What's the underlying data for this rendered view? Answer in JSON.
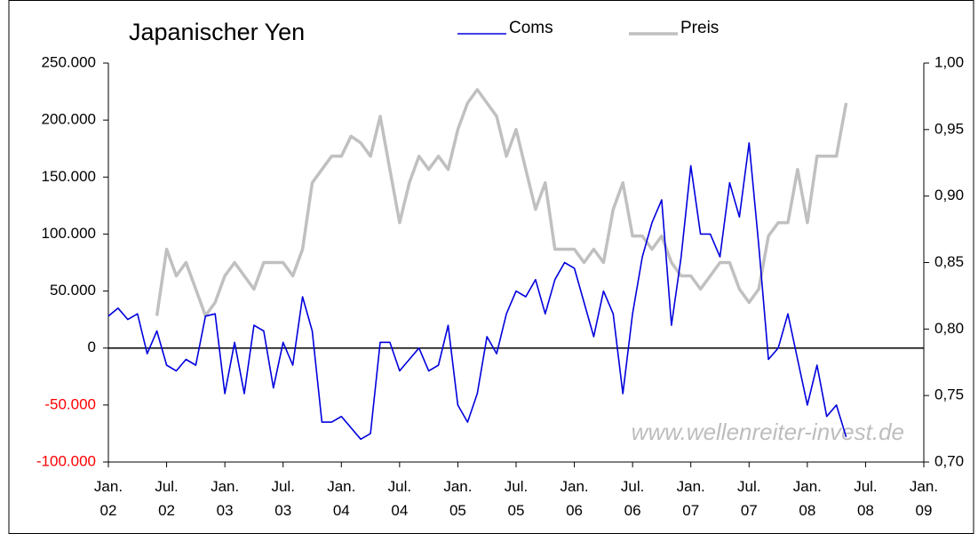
{
  "chart_data": {
    "type": "line",
    "title": "Japanischer Yen",
    "annotation": "www.wellenreiter-invest.de",
    "x": [
      "2002-01",
      "2002-02",
      "2002-03",
      "2002-04",
      "2002-05",
      "2002-06",
      "2002-07",
      "2002-08",
      "2002-09",
      "2002-10",
      "2002-11",
      "2002-12",
      "2003-01",
      "2003-02",
      "2003-03",
      "2003-04",
      "2003-05",
      "2003-06",
      "2003-07",
      "2003-08",
      "2003-09",
      "2003-10",
      "2003-11",
      "2003-12",
      "2004-01",
      "2004-02",
      "2004-03",
      "2004-04",
      "2004-05",
      "2004-06",
      "2004-07",
      "2004-08",
      "2004-09",
      "2004-10",
      "2004-11",
      "2004-12",
      "2005-01",
      "2005-02",
      "2005-03",
      "2005-04",
      "2005-05",
      "2005-06",
      "2005-07",
      "2005-08",
      "2005-09",
      "2005-10",
      "2005-11",
      "2005-12",
      "2006-01",
      "2006-02",
      "2006-03",
      "2006-04",
      "2006-05",
      "2006-06",
      "2006-07",
      "2006-08",
      "2006-09",
      "2006-10",
      "2006-11",
      "2006-12",
      "2007-01",
      "2007-02",
      "2007-03",
      "2007-04",
      "2007-05",
      "2007-06",
      "2007-07",
      "2007-08",
      "2007-09",
      "2007-10",
      "2007-11",
      "2007-12",
      "2008-01",
      "2008-02",
      "2008-03",
      "2008-04",
      "2008-05"
    ],
    "series": [
      {
        "name": "Coms",
        "color": "#0000dd",
        "axis": "y",
        "values": [
          28000,
          35000,
          25000,
          30000,
          -5000,
          15000,
          -15000,
          -20000,
          -10000,
          -15000,
          28000,
          30000,
          -40000,
          5000,
          -40000,
          20000,
          15000,
          -35000,
          5000,
          -15000,
          45000,
          15000,
          -65000,
          -65000,
          -60000,
          -70000,
          -80000,
          -75000,
          5000,
          5000,
          -20000,
          -10000,
          0,
          -20000,
          -15000,
          20000,
          -50000,
          -65000,
          -40000,
          10000,
          -5000,
          30000,
          50000,
          45000,
          60000,
          30000,
          60000,
          75000,
          70000,
          40000,
          10000,
          50000,
          30000,
          -40000,
          30000,
          80000,
          110000,
          130000,
          20000,
          80000,
          160000,
          100000,
          100000,
          80000,
          145000,
          115000,
          180000,
          90000,
          -10000,
          0,
          30000,
          -10000,
          -50000,
          -15000,
          -60000,
          -50000,
          -78000
        ]
      },
      {
        "name": "Preis",
        "color": "#c0c0c0",
        "axis": "y2",
        "values": [
          null,
          null,
          null,
          null,
          null,
          0.81,
          0.86,
          0.84,
          0.85,
          0.83,
          0.81,
          0.82,
          0.84,
          0.85,
          0.84,
          0.83,
          0.85,
          0.85,
          0.85,
          0.84,
          0.86,
          0.91,
          0.92,
          0.93,
          0.93,
          0.945,
          0.94,
          0.93,
          0.96,
          0.92,
          0.88,
          0.91,
          0.93,
          0.92,
          0.93,
          0.92,
          0.95,
          0.97,
          0.98,
          0.97,
          0.96,
          0.93,
          0.95,
          0.92,
          0.89,
          0.91,
          0.86,
          0.86,
          0.86,
          0.85,
          0.86,
          0.85,
          0.89,
          0.91,
          0.87,
          0.87,
          0.86,
          0.87,
          0.85,
          0.84,
          0.84,
          0.83,
          0.84,
          0.85,
          0.85,
          0.83,
          0.82,
          0.83,
          0.87,
          0.88,
          0.88,
          0.92,
          0.88,
          0.93,
          0.93,
          0.93,
          0.97
        ]
      }
    ],
    "xlim": [
      "2002-01",
      "2009-01"
    ],
    "xticks": [
      {
        "value": "2002-01",
        "label": "Jan. 02"
      },
      {
        "value": "2002-07",
        "label": "Jul. 02"
      },
      {
        "value": "2003-01",
        "label": "Jan. 03"
      },
      {
        "value": "2003-07",
        "label": "Jul. 03"
      },
      {
        "value": "2004-01",
        "label": "Jan. 04"
      },
      {
        "value": "2004-07",
        "label": "Jul. 04"
      },
      {
        "value": "2005-01",
        "label": "Jan. 05"
      },
      {
        "value": "2005-07",
        "label": "Jul. 05"
      },
      {
        "value": "2006-01",
        "label": "Jan. 06"
      },
      {
        "value": "2006-07",
        "label": "Jul. 06"
      },
      {
        "value": "2007-01",
        "label": "Jan. 07"
      },
      {
        "value": "2007-07",
        "label": "Jul. 07"
      },
      {
        "value": "2008-01",
        "label": "Jan. 08"
      },
      {
        "value": "2008-07",
        "label": "Jul. 08"
      },
      {
        "value": "2009-01",
        "label": "Jan. 09"
      }
    ],
    "ylim": [
      -100000,
      250000
    ],
    "yticks": [
      {
        "value": 250000,
        "label": "250.000"
      },
      {
        "value": 200000,
        "label": "200.000"
      },
      {
        "value": 150000,
        "label": "150.000"
      },
      {
        "value": 100000,
        "label": "100.000"
      },
      {
        "value": 50000,
        "label": "50.000"
      },
      0,
      {
        "value": -50000,
        "label": "-50.000"
      },
      {
        "value": -100000,
        "label": "-100.000"
      }
    ],
    "y2lim": [
      0.7,
      1.0
    ],
    "y2ticks": [
      {
        "value": 0.7,
        "label": "0,70"
      },
      {
        "value": 0.75,
        "label": "0,75"
      },
      {
        "value": 0.8,
        "label": "0,80"
      },
      {
        "value": 0.85,
        "label": "0,85"
      },
      {
        "value": 0.9,
        "label": "0,90"
      },
      {
        "value": 0.95,
        "label": "0,95"
      },
      {
        "value": 1.0,
        "label": "1,00"
      }
    ],
    "negative_tick_color": "#ff0000",
    "legend": "top"
  }
}
